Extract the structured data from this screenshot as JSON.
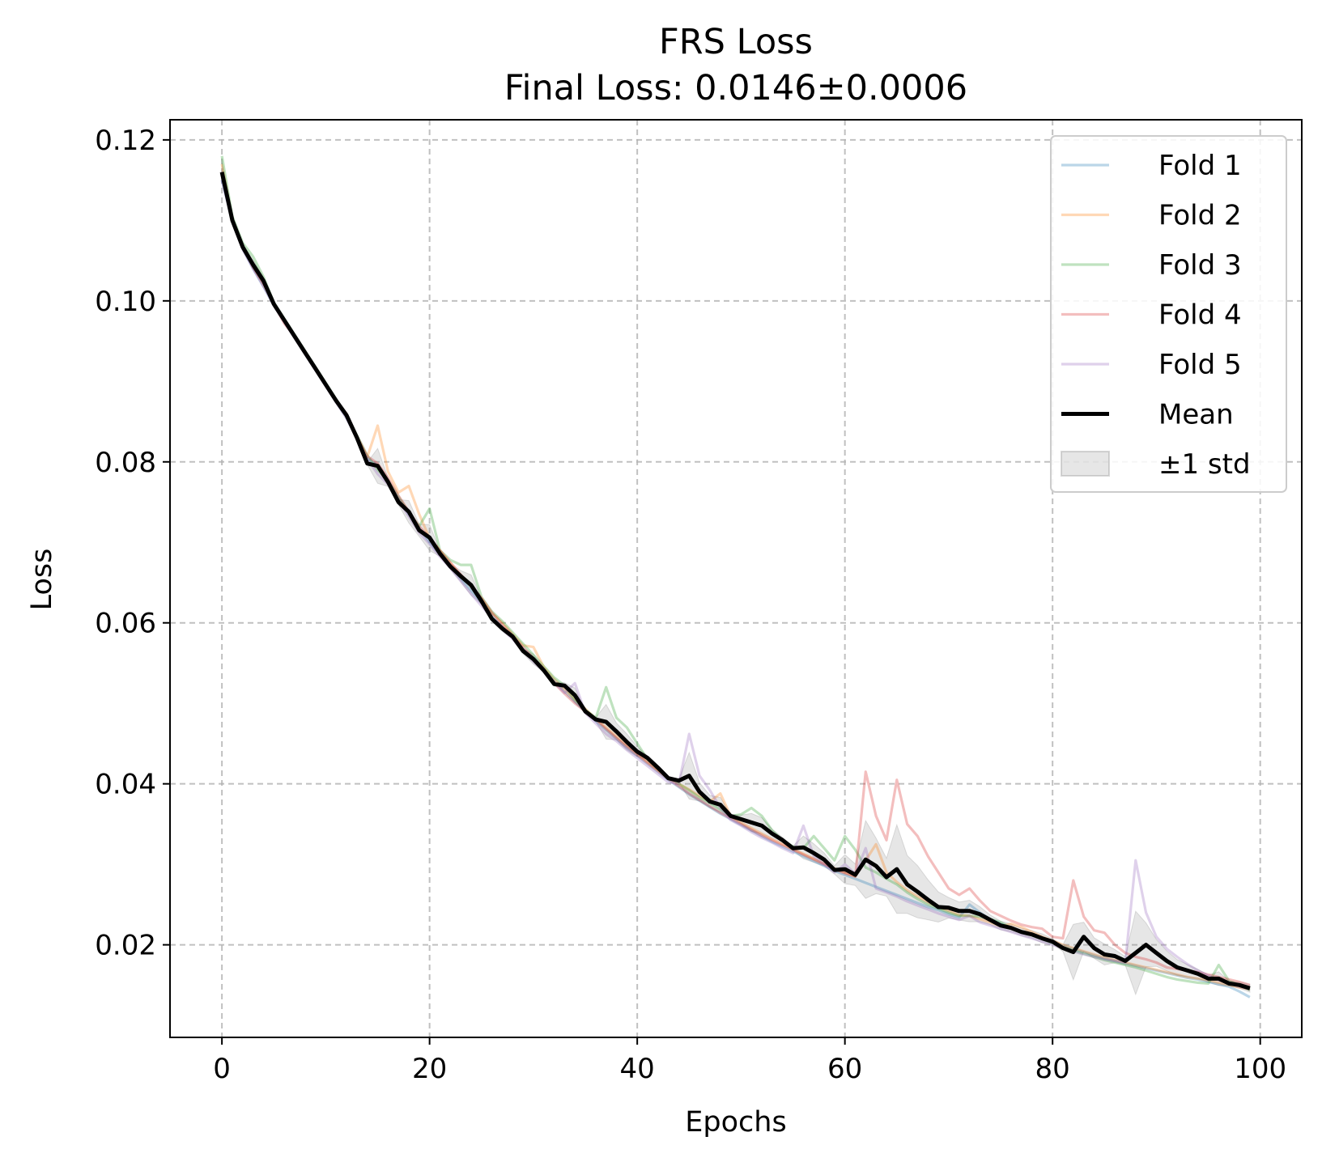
{
  "chart_data": {
    "type": "line",
    "title": "FRS Loss",
    "subtitle": "Final Loss: 0.0146±0.0006",
    "xlabel": "Epochs",
    "ylabel": "Loss",
    "xlim": [
      -5,
      104
    ],
    "ylim": [
      0.0085,
      0.1225
    ],
    "xticks": [
      0,
      20,
      40,
      60,
      80,
      100
    ],
    "xtick_labels": [
      "0",
      "20",
      "40",
      "60",
      "80",
      "100"
    ],
    "yticks": [
      0.02,
      0.04,
      0.06,
      0.08,
      0.1,
      0.12
    ],
    "ytick_labels": [
      "0.02",
      "0.04",
      "0.06",
      "0.08",
      "0.10",
      "0.12"
    ],
    "grid": true,
    "legend_position": "top-right",
    "legend": [
      "Fold 1",
      "Fold 2",
      "Fold 3",
      "Fold 4",
      "Fold 5",
      "Mean",
      "±1 std"
    ],
    "x": [
      0,
      1,
      2,
      3,
      4,
      5,
      6,
      7,
      8,
      9,
      10,
      11,
      12,
      13,
      14,
      15,
      16,
      17,
      18,
      19,
      20,
      21,
      22,
      23,
      24,
      25,
      26,
      27,
      28,
      29,
      30,
      31,
      32,
      33,
      34,
      35,
      36,
      37,
      38,
      39,
      40,
      41,
      42,
      43,
      44,
      45,
      46,
      47,
      48,
      49,
      50,
      51,
      52,
      53,
      54,
      55,
      56,
      57,
      58,
      59,
      60,
      61,
      62,
      63,
      64,
      65,
      66,
      67,
      68,
      69,
      70,
      71,
      72,
      73,
      74,
      75,
      76,
      77,
      78,
      79,
      80,
      81,
      82,
      83,
      84,
      85,
      86,
      87,
      88,
      89,
      90,
      91,
      92,
      93,
      94,
      95,
      96,
      97,
      98,
      99
    ],
    "series": [
      {
        "name": "Fold 1",
        "color": "#1f77b4",
        "values": [
          0.115,
          0.11,
          0.1065,
          0.104,
          0.1018,
          0.0995,
          0.0975,
          0.0955,
          0.0935,
          0.0915,
          0.0895,
          0.0875,
          0.0855,
          0.083,
          0.0805,
          0.0795,
          0.0775,
          0.0755,
          0.0735,
          0.0718,
          0.07,
          0.0685,
          0.067,
          0.0655,
          0.064,
          0.0625,
          0.061,
          0.0595,
          0.0582,
          0.0568,
          0.0555,
          0.0542,
          0.0528,
          0.0515,
          0.0502,
          0.049,
          0.0478,
          0.0467,
          0.0456,
          0.0445,
          0.0435,
          0.0425,
          0.0415,
          0.0405,
          0.0396,
          0.0387,
          0.0379,
          0.0371,
          0.0363,
          0.0356,
          0.0349,
          0.0342,
          0.0335,
          0.0328,
          0.0322,
          0.0316,
          0.031,
          0.0304,
          0.0298,
          0.0292,
          0.0287,
          0.0282,
          0.0277,
          0.0272,
          0.0267,
          0.0262,
          0.0257,
          0.0252,
          0.0247,
          0.0243,
          0.0238,
          0.0234,
          0.025,
          0.024,
          0.0232,
          0.0226,
          0.0221,
          0.0216,
          0.0212,
          0.0207,
          0.0203,
          0.0199,
          0.0195,
          0.0191,
          0.0187,
          0.0183,
          0.018,
          0.0177,
          0.0174,
          0.0171,
          0.0168,
          0.0165,
          0.0162,
          0.0159,
          0.0157,
          0.0154,
          0.0151,
          0.0148,
          0.0142,
          0.0135
        ]
      },
      {
        "name": "Fold 2",
        "color": "#ff7f0e",
        "values": [
          0.117,
          0.1102,
          0.1068,
          0.1042,
          0.102,
          0.0996,
          0.0976,
          0.0956,
          0.0936,
          0.0916,
          0.0896,
          0.0876,
          0.0856,
          0.0831,
          0.0806,
          0.0845,
          0.0788,
          0.0762,
          0.077,
          0.0735,
          0.0705,
          0.069,
          0.0674,
          0.0659,
          0.0645,
          0.063,
          0.0612,
          0.06,
          0.0586,
          0.0572,
          0.057,
          0.0545,
          0.053,
          0.0517,
          0.0505,
          0.0493,
          0.0481,
          0.047,
          0.0459,
          0.0448,
          0.0438,
          0.0427,
          0.0417,
          0.0408,
          0.04,
          0.0393,
          0.0385,
          0.0378,
          0.0388,
          0.036,
          0.0352,
          0.0345,
          0.0338,
          0.0331,
          0.0325,
          0.0319,
          0.0313,
          0.0307,
          0.0301,
          0.0295,
          0.029,
          0.0285,
          0.0305,
          0.0325,
          0.029,
          0.0278,
          0.0268,
          0.026,
          0.0253,
          0.0247,
          0.0242,
          0.0237,
          0.0236,
          0.0232,
          0.0228,
          0.0223,
          0.0226,
          0.0222,
          0.0216,
          0.021,
          0.0205,
          0.02,
          0.0196,
          0.0192,
          0.0188,
          0.0184,
          0.0181,
          0.0178,
          0.0175,
          0.0172,
          0.0169,
          0.0166,
          0.0163,
          0.016,
          0.0158,
          0.0156,
          0.0153,
          0.015,
          0.0147,
          0.0145
        ]
      },
      {
        "name": "Fold 3",
        "color": "#2ca02c",
        "values": [
          0.118,
          0.1105,
          0.1072,
          0.1055,
          0.103,
          0.0998,
          0.0978,
          0.0958,
          0.0938,
          0.0918,
          0.0898,
          0.0878,
          0.0858,
          0.0833,
          0.0808,
          0.079,
          0.0777,
          0.0757,
          0.0737,
          0.072,
          0.0742,
          0.069,
          0.0678,
          0.0672,
          0.0672,
          0.0632,
          0.0614,
          0.0602,
          0.0588,
          0.0574,
          0.056,
          0.0546,
          0.0532,
          0.0522,
          0.0505,
          0.0492,
          0.0482,
          0.052,
          0.0482,
          0.047,
          0.045,
          0.043,
          0.0418,
          0.0408,
          0.04,
          0.0392,
          0.0383,
          0.0376,
          0.0368,
          0.036,
          0.0362,
          0.037,
          0.036,
          0.0342,
          0.033,
          0.0322,
          0.032,
          0.0335,
          0.032,
          0.0305,
          0.0335,
          0.0318,
          0.0296,
          0.029,
          0.0282,
          0.0275,
          0.0265,
          0.0257,
          0.025,
          0.0245,
          0.024,
          0.0236,
          0.0236,
          0.0235,
          0.0232,
          0.0228,
          0.0221,
          0.0216,
          0.0212,
          0.0207,
          0.0202,
          0.0197,
          0.0193,
          0.0189,
          0.0185,
          0.0181,
          0.0178,
          0.0175,
          0.0172,
          0.0168,
          0.0164,
          0.016,
          0.0157,
          0.0155,
          0.0153,
          0.0152,
          0.0175,
          0.0155,
          0.015,
          0.0144
        ]
      },
      {
        "name": "Fold 4",
        "color": "#d62728",
        "values": [
          0.116,
          0.11,
          0.1066,
          0.1042,
          0.1022,
          0.0996,
          0.0972,
          0.0956,
          0.0936,
          0.0916,
          0.0896,
          0.0876,
          0.086,
          0.0832,
          0.0807,
          0.0798,
          0.078,
          0.0758,
          0.0738,
          0.072,
          0.0706,
          0.069,
          0.0675,
          0.066,
          0.0646,
          0.0631,
          0.0613,
          0.0598,
          0.0584,
          0.057,
          0.0556,
          0.0543,
          0.0525,
          0.0512,
          0.05,
          0.049,
          0.048,
          0.0468,
          0.0457,
          0.0446,
          0.0436,
          0.0426,
          0.0416,
          0.0406,
          0.0397,
          0.0388,
          0.038,
          0.0372,
          0.0364,
          0.0357,
          0.035,
          0.0343,
          0.0336,
          0.033,
          0.0324,
          0.0318,
          0.0312,
          0.0306,
          0.03,
          0.0294,
          0.0289,
          0.0285,
          0.0415,
          0.036,
          0.033,
          0.0405,
          0.035,
          0.0335,
          0.031,
          0.029,
          0.027,
          0.0262,
          0.027,
          0.0255,
          0.0242,
          0.0236,
          0.023,
          0.0225,
          0.0222,
          0.022,
          0.021,
          0.0208,
          0.028,
          0.0235,
          0.0218,
          0.0215,
          0.02,
          0.019,
          0.0185,
          0.0182,
          0.0178,
          0.0172,
          0.017,
          0.0168,
          0.0166,
          0.0163,
          0.016,
          0.0157,
          0.0154,
          0.015
        ]
      },
      {
        "name": "Fold 5",
        "color": "#9467bd",
        "values": [
          0.115,
          0.1098,
          0.1064,
          0.104,
          0.1018,
          0.0994,
          0.0974,
          0.0954,
          0.0934,
          0.0914,
          0.0894,
          0.0874,
          0.0854,
          0.0829,
          0.0804,
          0.0785,
          0.0772,
          0.0752,
          0.0732,
          0.0712,
          0.0698,
          0.0682,
          0.0668,
          0.0652,
          0.0636,
          0.0621,
          0.0606,
          0.0592,
          0.058,
          0.0565,
          0.0552,
          0.054,
          0.0526,
          0.0513,
          0.0525,
          0.0488,
          0.0475,
          0.0462,
          0.0453,
          0.0442,
          0.0432,
          0.0422,
          0.0412,
          0.0402,
          0.04,
          0.0462,
          0.041,
          0.0392,
          0.037,
          0.0355,
          0.0348,
          0.034,
          0.0333,
          0.0327,
          0.032,
          0.0314,
          0.0348,
          0.031,
          0.03,
          0.029,
          0.03,
          0.0288,
          0.032,
          0.027,
          0.0265,
          0.026,
          0.0254,
          0.0249,
          0.0244,
          0.0239,
          0.0235,
          0.0231,
          0.0236,
          0.0228,
          0.0224,
          0.022,
          0.0216,
          0.0212,
          0.0208,
          0.0204,
          0.02,
          0.0196,
          0.0192,
          0.0188,
          0.0185,
          0.0182,
          0.018,
          0.0178,
          0.0305,
          0.024,
          0.021,
          0.0195,
          0.0185,
          0.0176,
          0.0168,
          0.0162,
          0.0156,
          0.0152,
          0.0148,
          0.0145
        ]
      },
      {
        "name": "Mean",
        "color": "#000000",
        "values": [
          0.116,
          0.11,
          0.1067,
          0.1045,
          0.1025,
          0.0996,
          0.0976,
          0.0956,
          0.0936,
          0.0916,
          0.0896,
          0.0876,
          0.0858,
          0.083,
          0.0798,
          0.0795,
          0.0775,
          0.075,
          0.0738,
          0.0715,
          0.0706,
          0.0686,
          0.067,
          0.0658,
          0.0647,
          0.0627,
          0.0605,
          0.0593,
          0.0583,
          0.0565,
          0.0555,
          0.0541,
          0.0524,
          0.0522,
          0.051,
          0.049,
          0.048,
          0.0477,
          0.0465,
          0.0452,
          0.044,
          0.0432,
          0.042,
          0.0407,
          0.0404,
          0.041,
          0.039,
          0.0378,
          0.0374,
          0.036,
          0.0356,
          0.0352,
          0.0348,
          0.0338,
          0.033,
          0.032,
          0.0321,
          0.0314,
          0.0306,
          0.0293,
          0.0294,
          0.0287,
          0.0306,
          0.0298,
          0.0284,
          0.0294,
          0.0275,
          0.0266,
          0.0256,
          0.0247,
          0.0246,
          0.0242,
          0.0242,
          0.0238,
          0.0231,
          0.0224,
          0.0221,
          0.0216,
          0.0213,
          0.0208,
          0.0204,
          0.0196,
          0.0191,
          0.021,
          0.0196,
          0.0188,
          0.0186,
          0.018,
          0.019,
          0.02,
          0.019,
          0.018,
          0.0172,
          0.0168,
          0.0164,
          0.0158,
          0.0158,
          0.0152,
          0.015,
          0.0146
        ]
      }
    ],
    "std_band": {
      "name": "±1 std",
      "color": "#808080"
    }
  }
}
